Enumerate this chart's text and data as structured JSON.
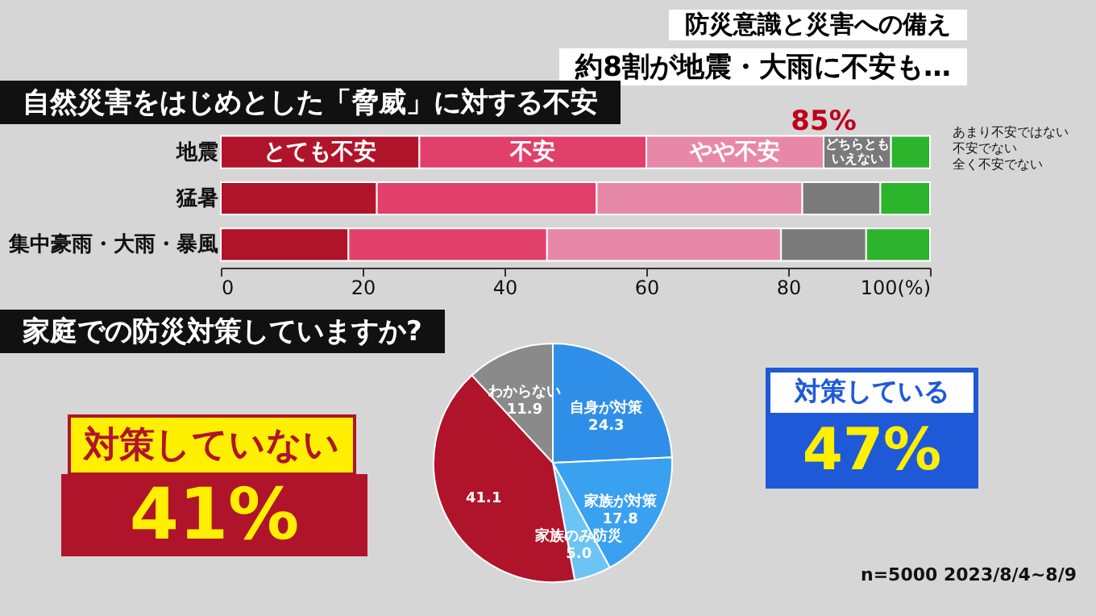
{
  "chart_data": [
    {
      "type": "bar",
      "orientation": "horizontal",
      "stacked": true,
      "title": "自然災害をはじめとした「脅威」に対する不安",
      "annotations": [
        "防災意識と災害への備え",
        "約8割が地震・大雨に不安も…",
        {
          "text": "85%",
          "x": 85,
          "y": "地震"
        }
      ],
      "categories": [
        "地震",
        "猛暑",
        "集中豪雨・大雨・暴風"
      ],
      "series": [
        {
          "name": "とても不安",
          "color": "#b0142a",
          "values": [
            28,
            22,
            18
          ]
        },
        {
          "name": "不安",
          "color": "#e0406a",
          "values": [
            32,
            31,
            28
          ]
        },
        {
          "name": "やや不安",
          "color": "#e888a8",
          "values": [
            25,
            29,
            33
          ]
        },
        {
          "name": "どちらともいえない",
          "color": "#7a7a7a",
          "values": [
            9.5,
            11,
            12
          ]
        },
        {
          "name": "あまり不安ではない不安でない全く不安でない",
          "color": "#2db42d",
          "values": [
            5.5,
            7,
            9
          ]
        }
      ],
      "xlim": [
        0,
        100
      ],
      "xticks": [
        0,
        20,
        40,
        60,
        80,
        {
          "value": 100,
          "label": "100(%)"
        }
      ]
    },
    {
      "type": "pie",
      "title": "家庭での防災対策していますか?",
      "categories": [
        "自身が対策",
        "家族が対策",
        "家族のみ防災",
        null,
        "わからない"
      ],
      "values": [
        24.3,
        17.8,
        5.0,
        41.1,
        11.9
      ],
      "value_labels": [
        "24.3",
        "17.8",
        "5.0",
        "41.1",
        "11.9"
      ],
      "colors": [
        "#2f8fe8",
        "#3aa0f0",
        "#6cc4f5",
        "#b0142a",
        "#8a8a8a"
      ],
      "annotations": [
        "対策していない",
        "41%",
        "対策している",
        "47%",
        "n=5000 2023/8/4~8/9"
      ]
    }
  ]
}
